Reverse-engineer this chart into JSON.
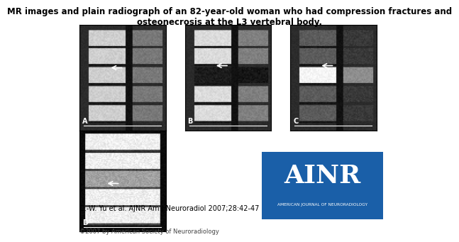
{
  "title": "MR images and plain radiograph of an 82-year-old woman who had compression fractures and\nosteonecrosis at the L3 vertebral body.",
  "citation": "C.-W. Yu et al. AJNR Am J Neuroradiol 2007;28:42-47",
  "copyright": "©2007 by American Society of Neuroradiology",
  "bg_color": "#ffffff",
  "ainr_bg_color": "#1a5fa8",
  "ainr_text": "AINR",
  "ainr_subtext": "AMERICAN JOURNAL OF NEURORADIOLOGY",
  "panel_labels": [
    "A",
    "B",
    "C",
    "D"
  ],
  "title_fontsize": 8.5,
  "citation_fontsize": 7,
  "copyright_fontsize": 6
}
